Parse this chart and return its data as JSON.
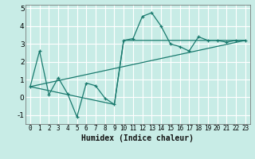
{
  "xlabel": "Humidex (Indice chaleur)",
  "ylabel": "",
  "bg_color": "#c8ece6",
  "grid_color": "#ffffff",
  "line_color": "#1a7a6e",
  "xlim": [
    -0.5,
    23.5
  ],
  "ylim": [
    -1.5,
    5.2
  ],
  "yticks": [
    -1,
    0,
    1,
    2,
    3,
    4,
    5
  ],
  "xticks": [
    0,
    1,
    2,
    3,
    4,
    5,
    6,
    7,
    8,
    9,
    10,
    11,
    12,
    13,
    14,
    15,
    16,
    17,
    18,
    19,
    20,
    21,
    22,
    23
  ],
  "line1_x": [
    0,
    1,
    2,
    3,
    4,
    5,
    6,
    7,
    8,
    9,
    10,
    11,
    12,
    13,
    14,
    15,
    16,
    17,
    18,
    19,
    20,
    21,
    22,
    23
  ],
  "line1_y": [
    0.6,
    2.6,
    0.15,
    1.1,
    0.2,
    -1.1,
    0.8,
    0.65,
    -0.05,
    -0.4,
    3.2,
    3.3,
    4.55,
    4.75,
    4.0,
    3.0,
    2.85,
    2.6,
    3.4,
    3.2,
    3.2,
    3.1,
    3.2,
    3.2
  ],
  "line2_x": [
    0,
    23
  ],
  "line2_y": [
    0.6,
    3.2
  ],
  "line3_x": [
    0,
    9,
    10,
    23
  ],
  "line3_y": [
    0.6,
    -0.4,
    3.2,
    3.2
  ]
}
